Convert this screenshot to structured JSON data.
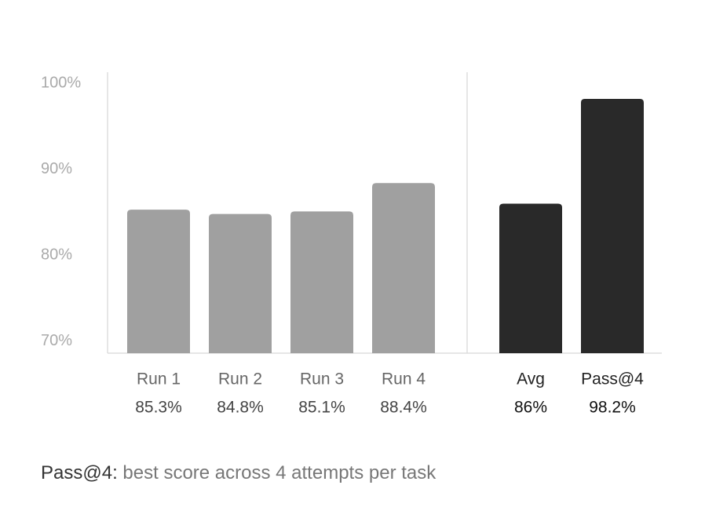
{
  "chart_data": {
    "type": "bar",
    "categories": [
      "Run 1",
      "Run 2",
      "Run 3",
      "Run 4",
      "Avg",
      "Pass@4"
    ],
    "values": [
      85.3,
      84.8,
      85.1,
      88.4,
      86,
      98.2
    ],
    "value_labels": [
      "85.3%",
      "84.8%",
      "85.1%",
      "88.4%",
      "86%",
      "98.2%"
    ],
    "colors": [
      "#a0a0a0",
      "#a0a0a0",
      "#a0a0a0",
      "#a0a0a0",
      "#292929",
      "#292929"
    ],
    "ylim": [
      68.6,
      101.3
    ],
    "yticks": [
      {
        "value": 70,
        "label": "70%"
      },
      {
        "value": 80,
        "label": "80%"
      },
      {
        "value": 90,
        "label": "90%"
      },
      {
        "value": 100,
        "label": "100%"
      }
    ],
    "footnote": {
      "term": "Pass@4:",
      "text": "best score across 4 attempts per task"
    }
  }
}
